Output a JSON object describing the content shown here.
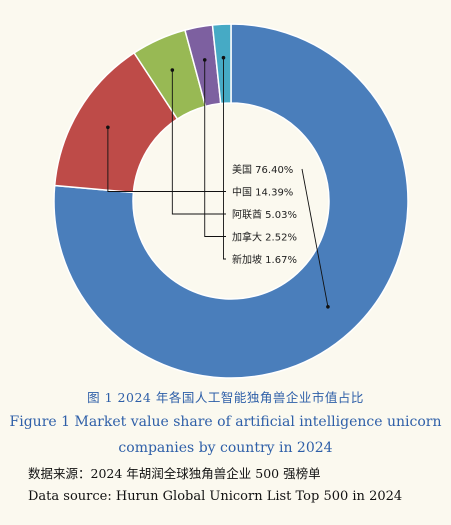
{
  "chart_data": {
    "type": "pie",
    "categories": [
      "美国",
      "中国",
      "阿联酋",
      "加拿大",
      "新加坡"
    ],
    "values": [
      76.4,
      14.39,
      5.03,
      2.52,
      1.67
    ],
    "labels": [
      "美国 76.40%",
      "中国 14.39%",
      "阿联酋 5.03%",
      "加拿大 2.52%",
      "新加坡 1.67%"
    ],
    "colors": [
      "#4a7ebb",
      "#be4b48",
      "#98b954",
      "#7d60a0",
      "#46aac5"
    ]
  },
  "caption": {
    "zh": "图 1   2024 年各国人工智能独角兽企业市值占比",
    "en_line1": "Figure 1    Market value share of artificial intelligence unicorn",
    "en_line2": "companies by country in 2024"
  },
  "source": {
    "zh": "数据来源：2024 年胡润全球独角兽企业 500 强榜单",
    "en": "Data source: Hurun Global Unicorn List Top 500 in 2024"
  }
}
